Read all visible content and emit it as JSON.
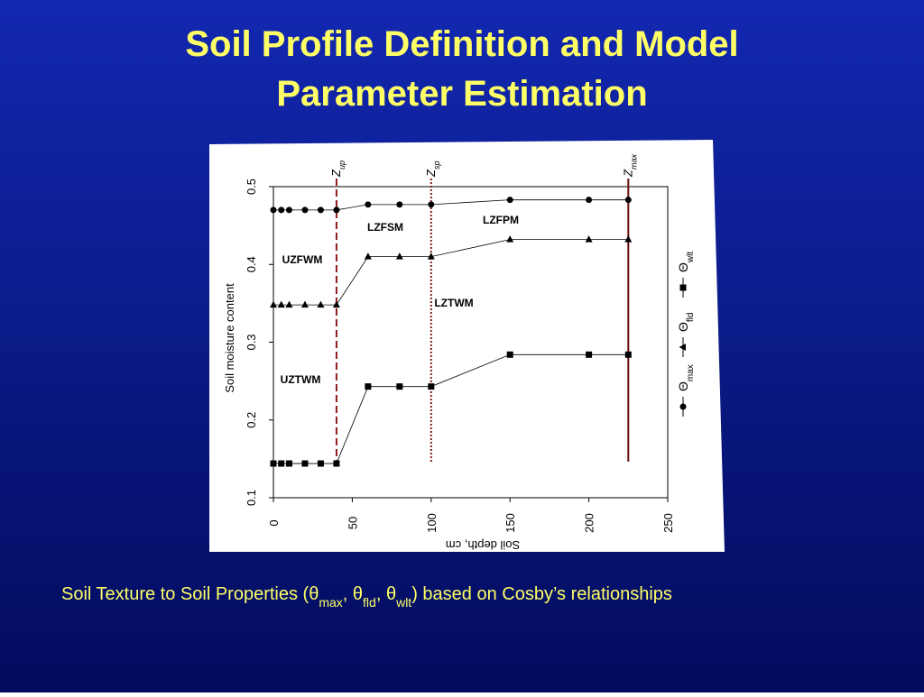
{
  "slide": {
    "title": [
      "Soil Profile Definition and Model",
      "Parameter Estimation"
    ],
    "caption": [
      [
        "Soil Texture to Soil Properties (θ",
        "max"
      ],
      [
        ", θ",
        "fld"
      ],
      [
        ", θ",
        "wlt"
      ],
      [
        ") based on Cosby’s relationships"
      ]
    ]
  },
  "chart_data": {
    "type": "line",
    "x_label": "Soil depth, cm",
    "y_label": "Soil moisture content",
    "x": [
      0,
      5,
      10,
      20,
      30,
      40,
      60,
      80,
      100,
      150,
      200,
      225
    ],
    "series": [
      {
        "name": "Θmax",
        "color": "#000000",
        "marker": "circle",
        "values": [
          0.47,
          0.47,
          0.47,
          0.47,
          0.47,
          0.47,
          0.477,
          0.477,
          0.477,
          0.483,
          0.483,
          0.483
        ]
      },
      {
        "name": "Θfld",
        "color": "#000000",
        "marker": "triangle",
        "values": [
          0.348,
          0.348,
          0.348,
          0.348,
          0.348,
          0.348,
          0.41,
          0.41,
          0.41,
          0.432,
          0.432,
          0.432
        ]
      },
      {
        "name": "Θwlt",
        "color": "#000000",
        "marker": "square",
        "values": [
          0.144,
          0.144,
          0.144,
          0.144,
          0.144,
          0.144,
          0.243,
          0.243,
          0.243,
          0.284,
          0.284,
          0.284
        ]
      }
    ],
    "vlines": [
      {
        "label": "Zup",
        "x": 40,
        "style": "dashed",
        "color": "#8b1a1a"
      },
      {
        "label": "Zsp",
        "x": 100,
        "style": "dotted",
        "color": "#8b1a1a"
      },
      {
        "label": "Zmax",
        "x": 225,
        "style": "solid",
        "color": "#6b0d0d"
      }
    ],
    "annotations": [
      "LZFSM",
      "LZFPM",
      "UZFWM",
      "LZTWM",
      "UZTWM"
    ],
    "xlim": [
      0,
      250
    ],
    "xticks": [
      0,
      50,
      100,
      150,
      200,
      250
    ],
    "ylim": [
      0.1,
      0.5
    ],
    "yticks": [
      0.1,
      0.2,
      0.3,
      0.4,
      0.5
    ],
    "legend": "right"
  }
}
